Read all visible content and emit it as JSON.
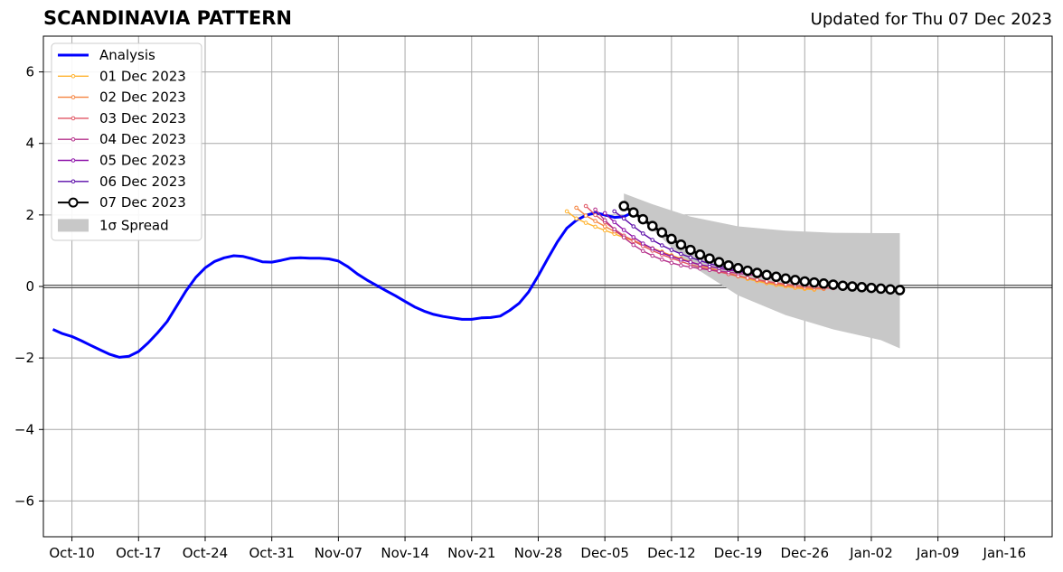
{
  "header": {
    "title": "SCANDINAVIA PATTERN",
    "updated": "Updated for Thu 07 Dec 2023"
  },
  "chart_data": {
    "type": "line",
    "title": "SCANDINAVIA PATTERN",
    "xlabel": "",
    "ylabel": "",
    "xlim": [
      "2023-10-07",
      "2024-01-21"
    ],
    "ylim": [
      -7,
      7
    ],
    "grid": true,
    "legend_placement": "top-left",
    "x_ticks": [
      "Oct-10",
      "Oct-17",
      "Oct-24",
      "Oct-31",
      "Nov-07",
      "Nov-14",
      "Nov-21",
      "Nov-28",
      "Dec-05",
      "Dec-12",
      "Dec-19",
      "Dec-26",
      "Jan-02",
      "Jan-09",
      "Jan-16"
    ],
    "x_tick_dates": [
      "2023-10-10",
      "2023-10-17",
      "2023-10-24",
      "2023-10-31",
      "2023-11-07",
      "2023-11-14",
      "2023-11-21",
      "2023-11-28",
      "2023-12-05",
      "2023-12-12",
      "2023-12-19",
      "2023-12-26",
      "2024-01-02",
      "2024-01-09",
      "2024-01-16"
    ],
    "y_ticks": [
      -6,
      -4,
      -2,
      0,
      2,
      4,
      6
    ],
    "y_tick_labels": [
      "−6",
      "−4",
      "−2",
      "0",
      "2",
      "4",
      "6"
    ],
    "analysis": {
      "name": "Analysis",
      "color": "#0000ff",
      "start_date": "2023-10-08",
      "values": [
        -1.2,
        -1.32,
        -1.4,
        -1.52,
        -1.65,
        -1.78,
        -1.9,
        -1.98,
        -1.95,
        -1.82,
        -1.58,
        -1.3,
        -0.98,
        -0.55,
        -0.12,
        0.25,
        0.52,
        0.7,
        0.8,
        0.86,
        0.84,
        0.77,
        0.69,
        0.68,
        0.73,
        0.79,
        0.8,
        0.79,
        0.79,
        0.77,
        0.71,
        0.55,
        0.35,
        0.18,
        0.03,
        -0.12,
        -0.26,
        -0.42,
        -0.57,
        -0.69,
        -0.78,
        -0.84,
        -0.88,
        -0.92,
        -0.92,
        -0.88,
        -0.87,
        -0.83,
        -0.67,
        -0.47,
        -0.15,
        0.3,
        0.78,
        1.24,
        1.63,
        1.85,
        1.99,
        2.06,
        2.0,
        1.93,
        1.95,
        2.08
      ]
    },
    "forecasts": [
      {
        "name": "01 Dec 2023",
        "color": "#ffb22e",
        "start_date": "2023-12-01",
        "values": [
          2.1,
          1.9,
          1.78,
          1.67,
          1.57,
          1.47,
          1.37,
          1.27,
          1.17,
          1.07,
          0.97,
          0.87,
          0.78,
          0.69,
          0.6,
          0.51,
          0.43,
          0.35,
          0.28,
          0.21,
          0.15,
          0.09,
          0.04,
          0.0,
          -0.04,
          -0.07,
          -0.09
        ]
      },
      {
        "name": "02 Dec 2023",
        "color": "#f5823d",
        "start_date": "2023-12-02",
        "values": [
          2.2,
          1.98,
          1.83,
          1.68,
          1.54,
          1.41,
          1.29,
          1.17,
          1.06,
          0.96,
          0.86,
          0.77,
          0.68,
          0.6,
          0.52,
          0.44,
          0.37,
          0.3,
          0.24,
          0.18,
          0.12,
          0.07,
          0.03,
          -0.01,
          -0.04,
          -0.06,
          -0.07
        ]
      },
      {
        "name": "03 Dec 2023",
        "color": "#e05563",
        "start_date": "2023-12-03",
        "values": [
          2.25,
          2.0,
          1.8,
          1.6,
          1.42,
          1.27,
          1.13,
          1.0,
          0.89,
          0.79,
          0.7,
          0.61,
          0.54,
          0.47,
          0.41,
          0.35,
          0.29,
          0.24,
          0.19,
          0.14,
          0.1,
          0.06,
          0.03,
          0.0,
          -0.02,
          -0.04,
          -0.05
        ]
      },
      {
        "name": "04 Dec 2023",
        "color": "#b5308b",
        "start_date": "2023-12-04",
        "values": [
          2.15,
          1.85,
          1.6,
          1.37,
          1.16,
          0.99,
          0.86,
          0.75,
          0.66,
          0.59,
          0.54,
          0.5,
          0.46,
          0.43,
          0.4,
          0.37,
          0.33,
          0.3,
          0.26,
          0.22,
          0.18,
          0.15,
          0.12,
          0.09,
          0.07,
          0.05
        ]
      },
      {
        "name": "05 Dec 2023",
        "color": "#8e14a9",
        "start_date": "2023-12-05",
        "values": [
          2.05,
          1.8,
          1.58,
          1.38,
          1.2,
          1.06,
          0.94,
          0.84,
          0.75,
          0.68,
          0.61,
          0.56,
          0.51,
          0.46,
          0.42,
          0.38,
          0.34,
          0.3,
          0.26,
          0.23,
          0.19,
          0.16,
          0.13,
          0.1,
          0.08,
          0.06
        ]
      },
      {
        "name": "06 Dec 2023",
        "color": "#5a0ba8",
        "start_date": "2023-12-06",
        "values": [
          2.1,
          1.9,
          1.68,
          1.48,
          1.3,
          1.15,
          1.02,
          0.91,
          0.81,
          0.72,
          0.64,
          0.57,
          0.5,
          0.44,
          0.39,
          0.34,
          0.29,
          0.25,
          0.21,
          0.17,
          0.13,
          0.1,
          0.07,
          0.04,
          0.02,
          0.0
        ]
      },
      {
        "name": "07 Dec 2023",
        "color": "#000000",
        "start_date": "2023-12-07",
        "values": [
          2.25,
          2.07,
          1.88,
          1.69,
          1.51,
          1.33,
          1.17,
          1.02,
          0.89,
          0.78,
          0.68,
          0.59,
          0.51,
          0.44,
          0.38,
          0.32,
          0.27,
          0.22,
          0.18,
          0.14,
          0.11,
          0.08,
          0.05,
          0.02,
          0.0,
          -0.02,
          -0.04,
          -0.06,
          -0.08,
          -0.1
        ]
      }
    ],
    "spread": {
      "name": "1σ Spread",
      "color": "#c8c8c8",
      "dates": [
        "2023-12-07",
        "2023-12-10",
        "2023-12-14",
        "2023-12-19",
        "2023-12-24",
        "2023-12-29",
        "2024-01-03",
        "2024-01-05"
      ],
      "upper": [
        2.6,
        2.3,
        1.95,
        1.68,
        1.56,
        1.5,
        1.49,
        1.49
      ],
      "lower": [
        2.2,
        1.6,
        0.6,
        -0.25,
        -0.8,
        -1.2,
        -1.5,
        -1.73
      ]
    },
    "legend": [
      "Analysis",
      "01 Dec 2023",
      "02 Dec 2023",
      "03 Dec 2023",
      "04 Dec 2023",
      "05 Dec 2023",
      "06 Dec 2023",
      "07 Dec 2023",
      "1σ Spread"
    ]
  }
}
